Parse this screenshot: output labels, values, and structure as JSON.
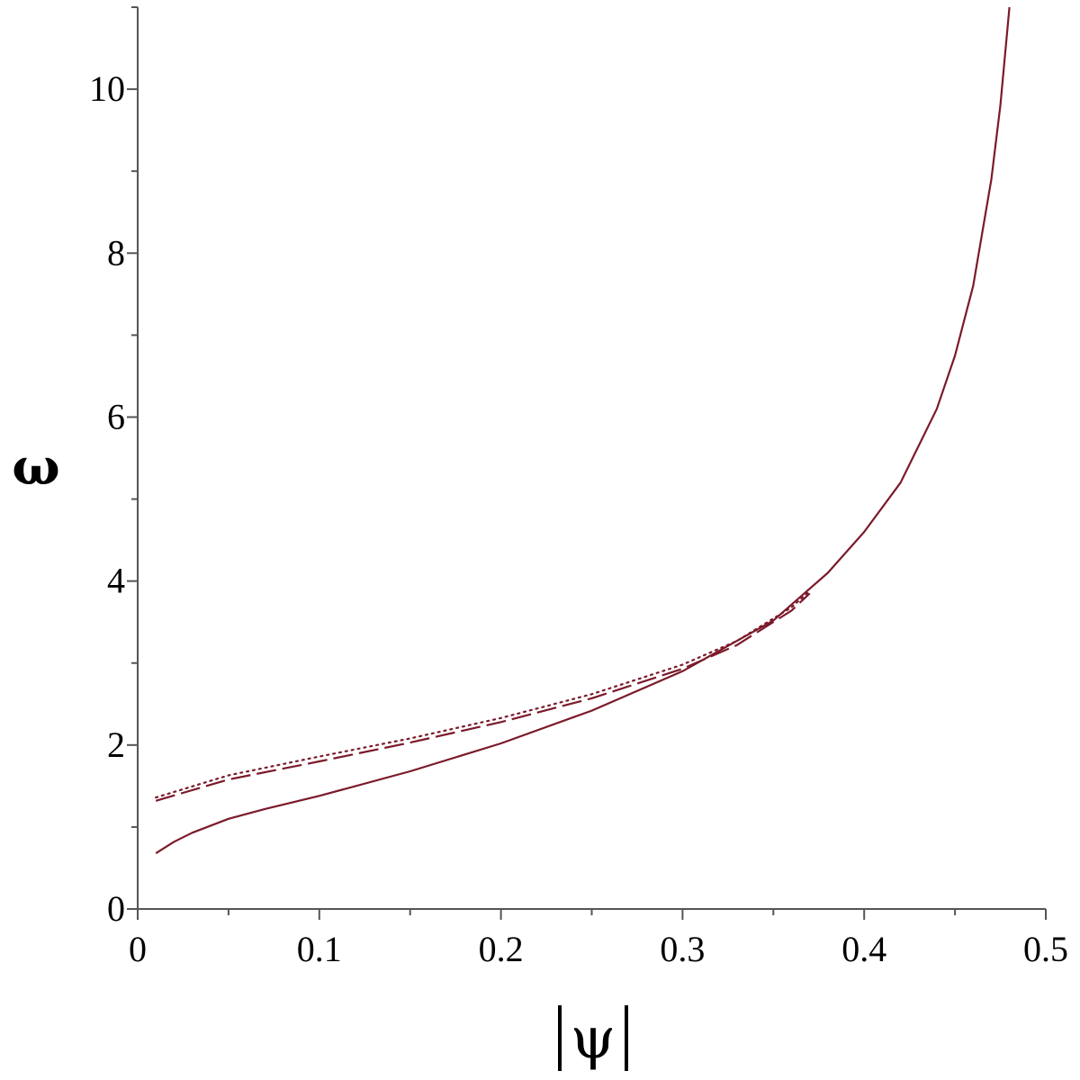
{
  "chart_data": {
    "type": "line",
    "xlabel": "ψ",
    "xlabel_abs_bars": true,
    "ylabel": "ω",
    "xlim": [
      0,
      0.5
    ],
    "ylim": [
      0,
      11
    ],
    "x_ticks": [
      "0",
      "0.1",
      "0.2",
      "0.3",
      "0.4",
      "0.5"
    ],
    "y_ticks": [
      "0",
      "2",
      "4",
      "6",
      "8",
      "10"
    ],
    "grid": false,
    "legend": "none",
    "line_color": "#7b1a2a",
    "series": [
      {
        "style": "dotted",
        "x": [
          0.01,
          0.05,
          0.1,
          0.15,
          0.2,
          0.25,
          0.3,
          0.33,
          0.36,
          0.37
        ],
        "y": [
          1.36,
          1.63,
          1.86,
          2.08,
          2.33,
          2.62,
          2.98,
          3.27,
          3.68,
          3.88
        ]
      },
      {
        "style": "dashed",
        "x": [
          0.01,
          0.05,
          0.1,
          0.15,
          0.2,
          0.25,
          0.3,
          0.33,
          0.36,
          0.37
        ],
        "y": [
          1.32,
          1.58,
          1.8,
          2.03,
          2.28,
          2.57,
          2.93,
          3.22,
          3.64,
          3.85
        ]
      },
      {
        "style": "solid",
        "x": [
          0.01,
          0.02,
          0.03,
          0.05,
          0.07,
          0.1,
          0.15,
          0.2,
          0.25,
          0.3,
          0.35,
          0.38,
          0.4,
          0.42,
          0.44,
          0.45,
          0.46,
          0.47,
          0.475,
          0.48
        ],
        "y": [
          0.68,
          0.82,
          0.93,
          1.1,
          1.22,
          1.38,
          1.68,
          2.02,
          2.42,
          2.9,
          3.52,
          4.1,
          4.6,
          5.2,
          6.1,
          6.75,
          7.6,
          8.9,
          9.8,
          11.0
        ]
      }
    ]
  }
}
